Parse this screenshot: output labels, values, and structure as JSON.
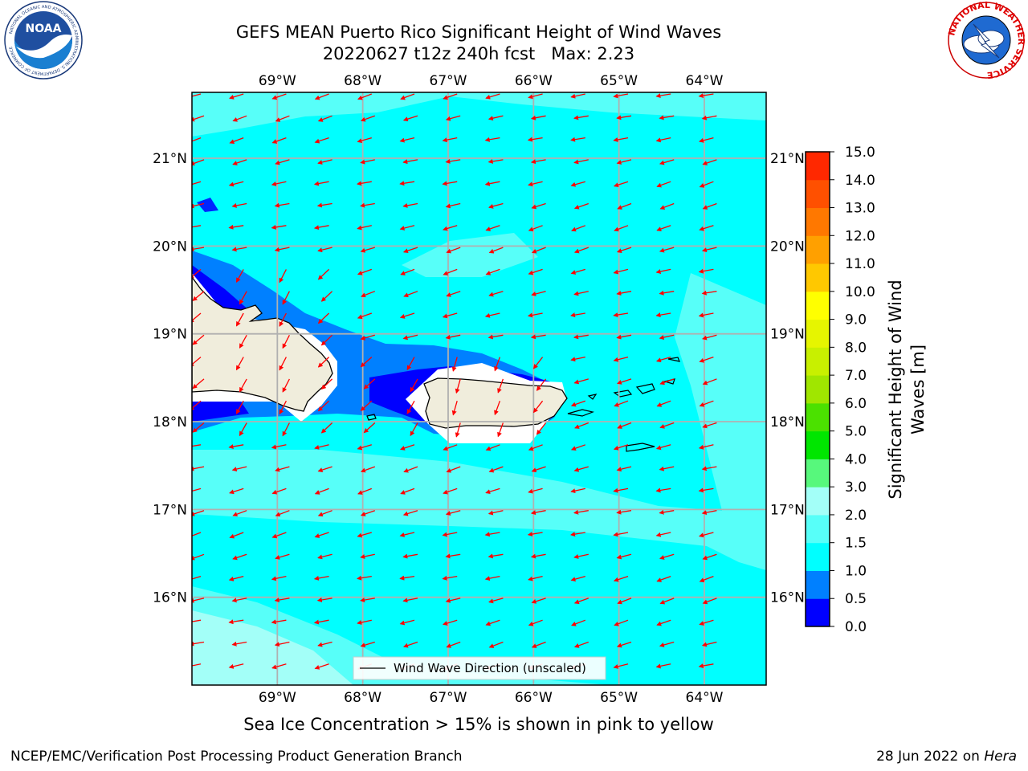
{
  "header": {
    "title_line1": "GEFS MEAN Puerto Rico Significant Height of Wind Waves",
    "title_line2": "20220627 t12z 240h fcst   Max: 2.23"
  },
  "map": {
    "lon_ticks": [
      "69°W",
      "68°W",
      "67°W",
      "66°W",
      "65°W",
      "64°W"
    ],
    "lat_ticks": [
      "21°N",
      "20°N",
      "19°N",
      "18°N",
      "17°N",
      "16°N"
    ],
    "legend_label": "Wind Wave Direction (unscaled)",
    "colors": {
      "ocean_main": "#00ffff",
      "ocean_light": "#57fff9",
      "ocean_pale": "#a3fff8",
      "mid_blue": "#0080ff",
      "deep_blue": "#0000ff",
      "land": "#f0eddc",
      "arrow": "#ff0000"
    }
  },
  "colorbar": {
    "label": "Significant Height of Wind Waves [m]",
    "label_line1": "Significant Height of Wind",
    "label_line2": "Waves [m]",
    "ticks": [
      "0.0",
      "0.5",
      "1.0",
      "1.5",
      "2.0",
      "3.0",
      "4.0",
      "5.0",
      "6.0",
      "7.0",
      "8.0",
      "9.0",
      "10.0",
      "11.0",
      "12.0",
      "13.0",
      "14.0",
      "15.0"
    ],
    "colors": [
      "#0000ff",
      "#0080ff",
      "#00ffff",
      "#57fff9",
      "#a3fff8",
      "#57f87c",
      "#00e600",
      "#4be100",
      "#a0e600",
      "#c8f000",
      "#e6f500",
      "#ffff00",
      "#ffc800",
      "#ffa000",
      "#ff7800",
      "#ff5000",
      "#ff2800"
    ]
  },
  "footer": {
    "subtitle": "Sea Ice Concentration > 15% is shown in pink to yellow",
    "left": "NCEP/EMC/Verification Post Processing Product Generation Branch",
    "date": "28 Jun 2022 on ",
    "machine": "Hera"
  },
  "logos": {
    "noaa_text": "NOAA",
    "noaa_ring_text": "NATIONAL OCEANIC AND ATMOSPHERIC ADMINISTRATION",
    "noaa_ring_bottom": "U.S. DEPARTMENT OF COMMERCE",
    "nws_ring_text": "NATIONAL WEATHER SERVICE"
  }
}
